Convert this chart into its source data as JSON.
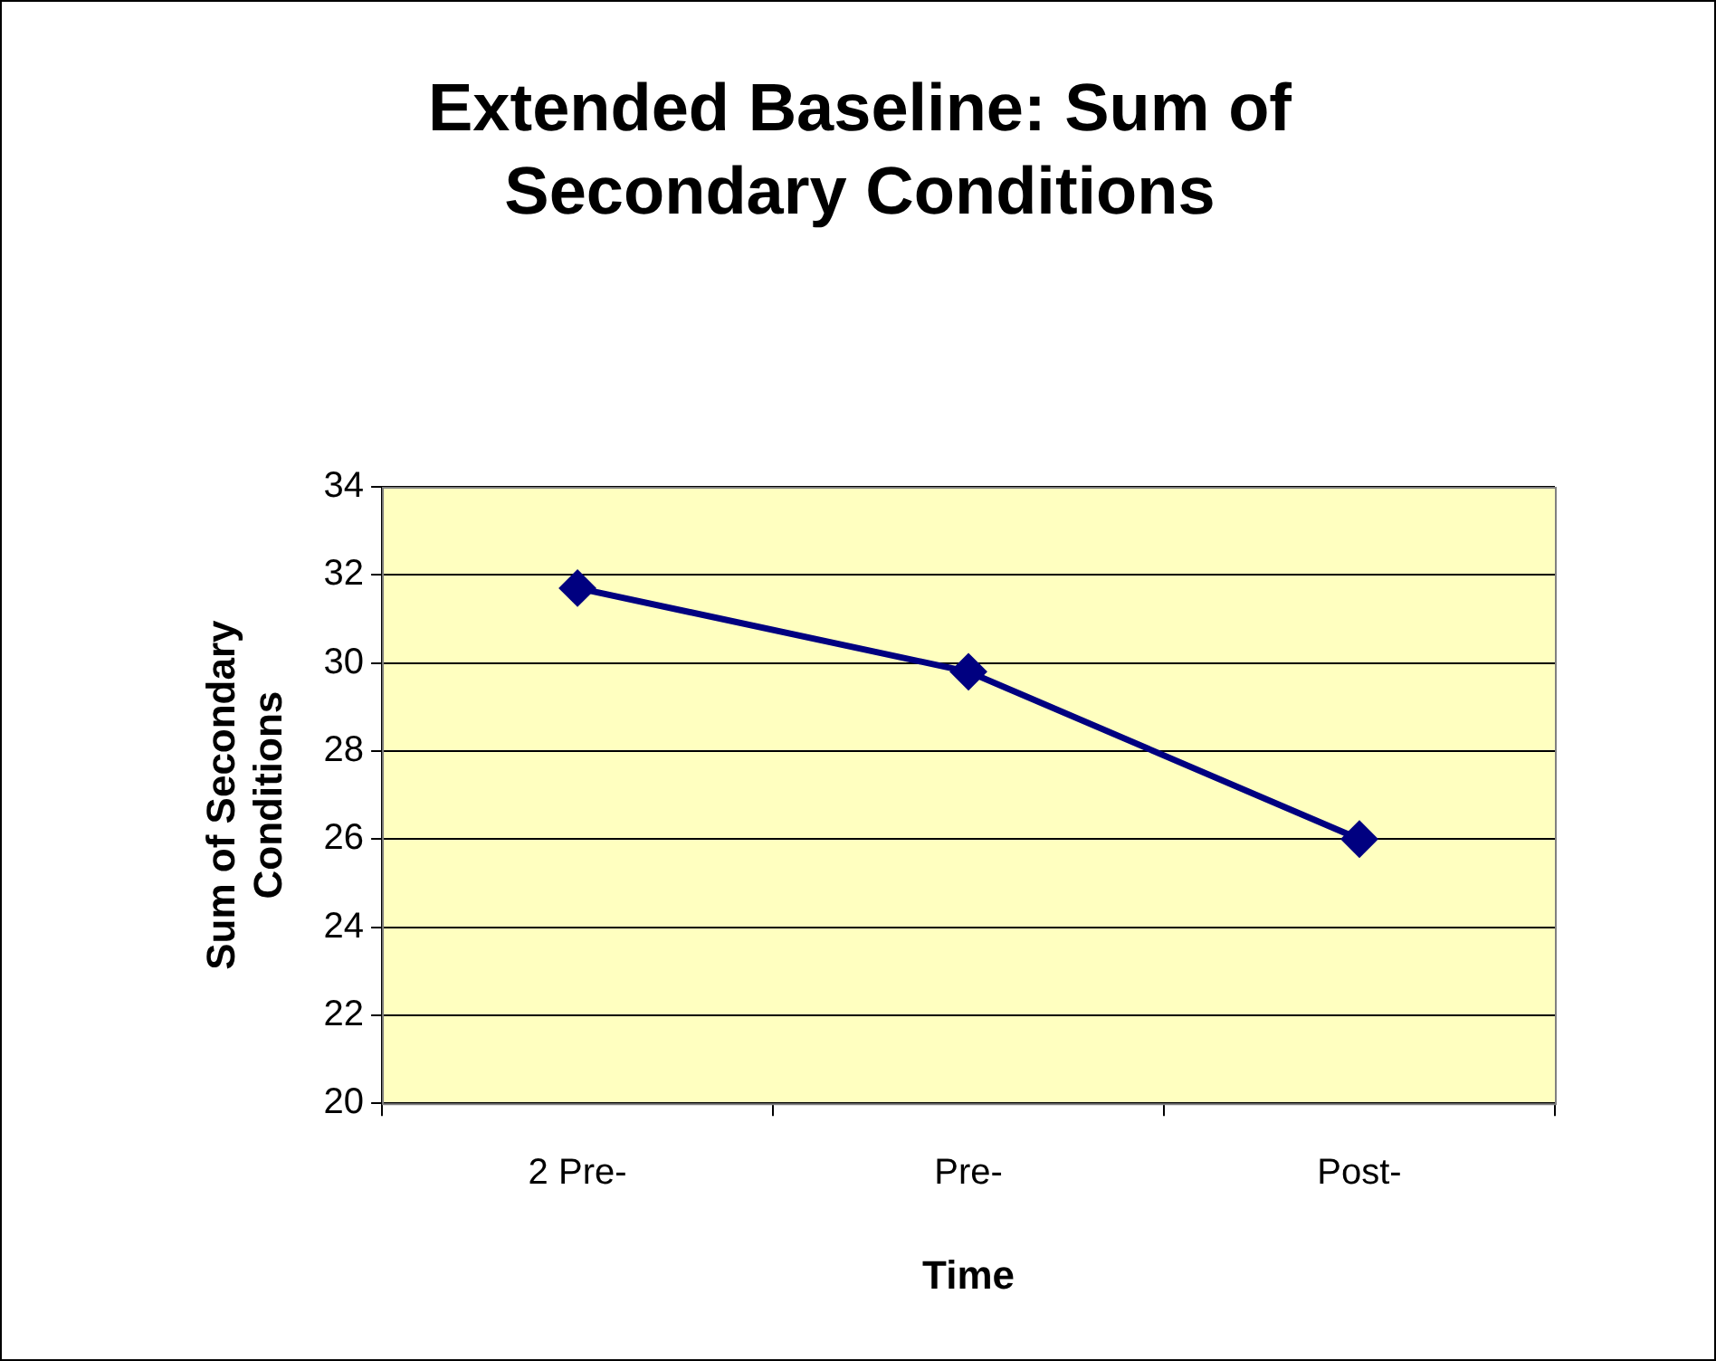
{
  "chart_data": {
    "type": "line",
    "title": "Extended Baseline: Sum of Secondary Conditions",
    "xlabel": "Time",
    "ylabel": "Sum of Secondary Conditions",
    "categories": [
      "2 Pre-",
      "Pre-",
      "Post-"
    ],
    "series": [
      {
        "color": "#000080",
        "values": [
          31.7,
          29.8,
          26.0
        ]
      }
    ],
    "ylim": [
      20,
      34
    ],
    "yticks": [
      20,
      22,
      24,
      26,
      28,
      30,
      32,
      34
    ],
    "grid": "y",
    "legend": false,
    "marker": "diamond",
    "line_style": "solid"
  }
}
